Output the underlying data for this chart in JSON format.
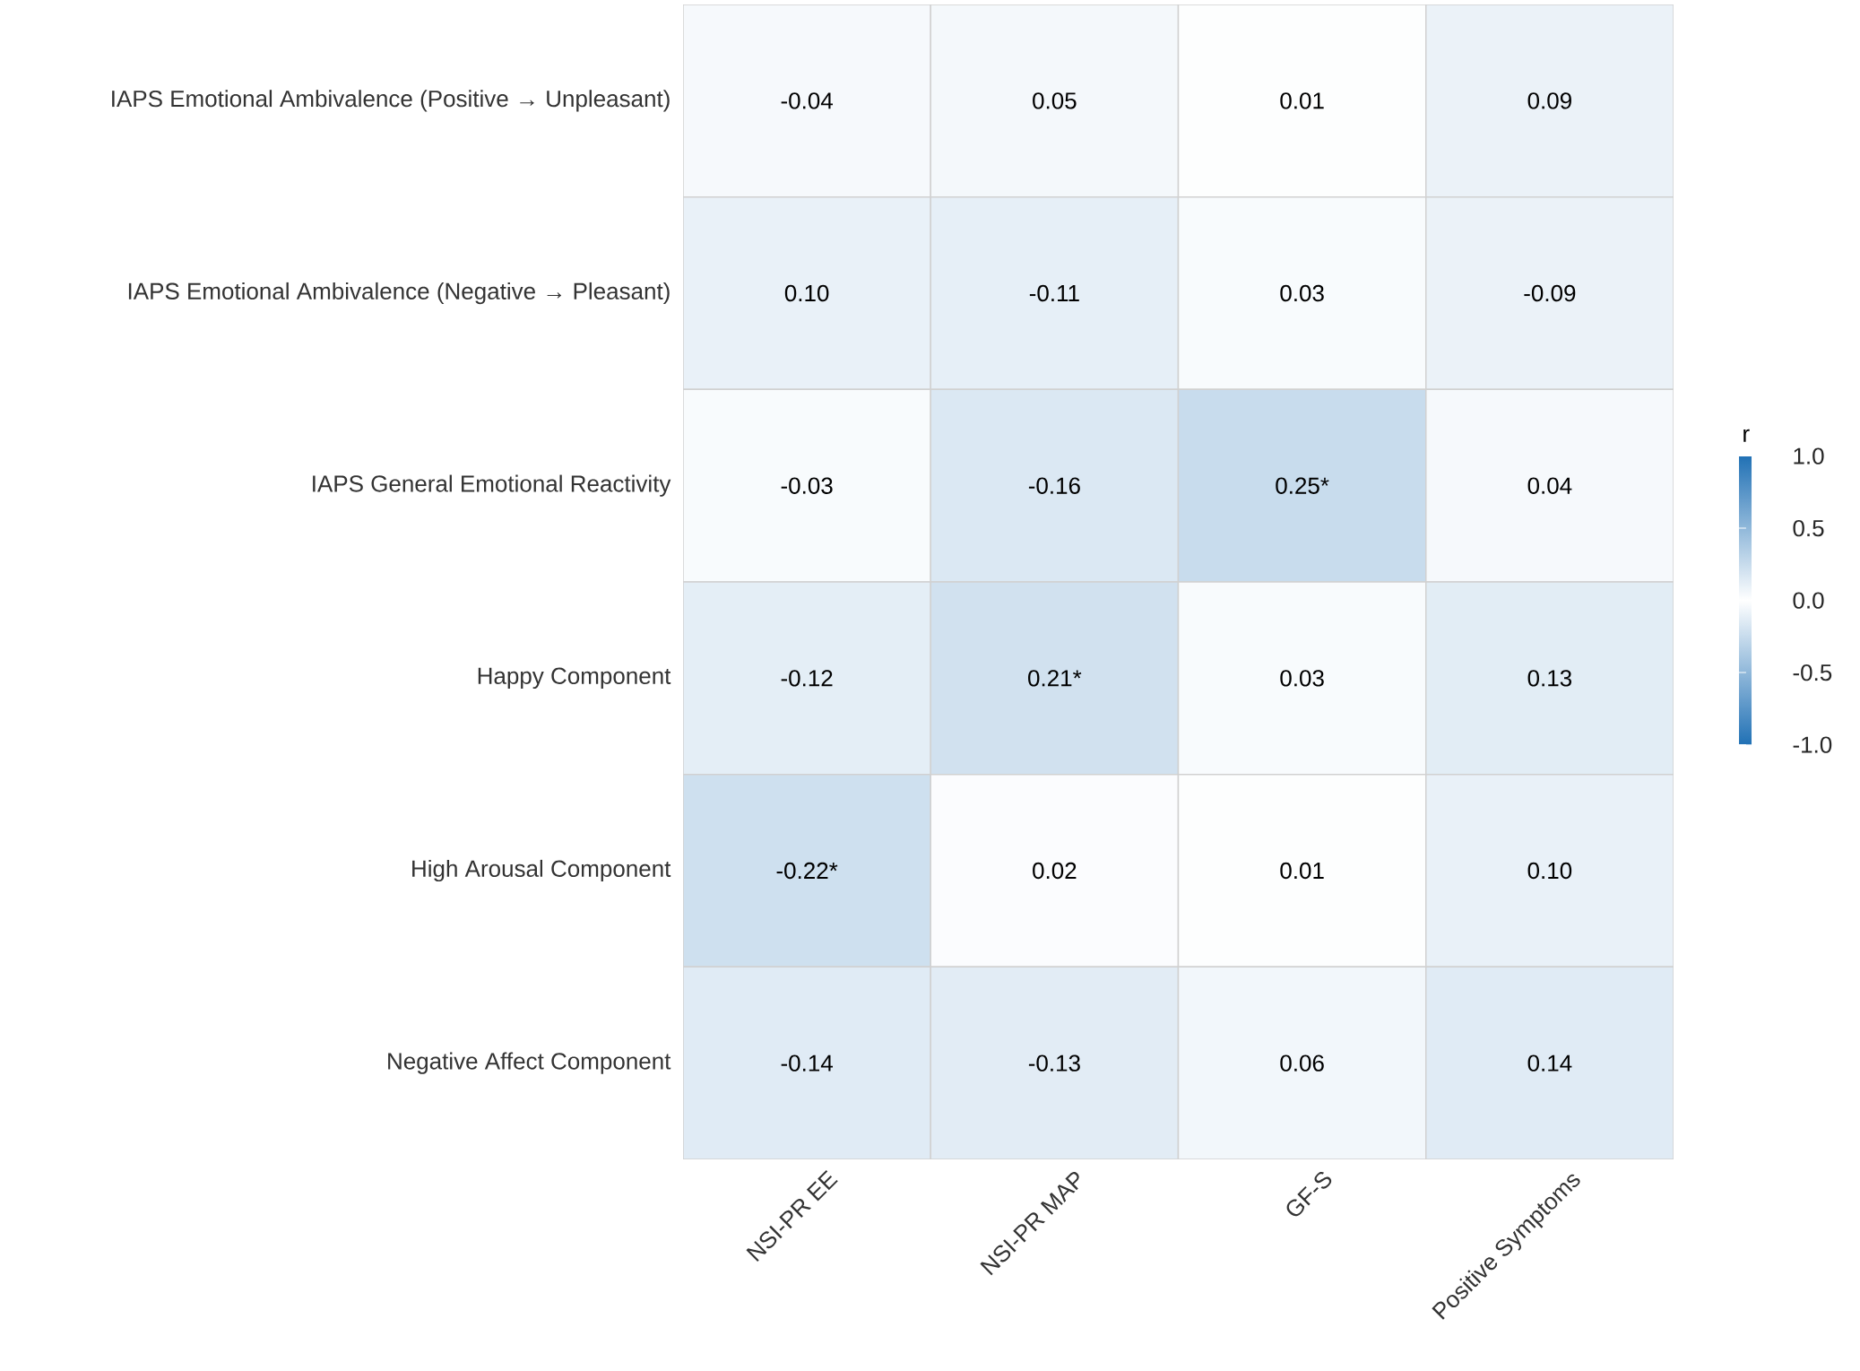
{
  "chart_data": {
    "type": "heatmap",
    "categories": [
      "NSI-PR EE",
      "NSI-PR MAP",
      "GF-S",
      "Positive Symptoms"
    ],
    "y_categories": [
      "IAPS Emotional Ambivalence (Positive → Unpleasant)",
      "IAPS Emotional Ambivalence (Negative → Pleasant)",
      "IAPS General Emotional Reactivity",
      "Happy Component",
      "High Arousal Component",
      "Negative Affect Component"
    ],
    "cells": [
      [
        -0.04,
        0.05,
        0.01,
        0.09
      ],
      [
        0.1,
        -0.11,
        0.03,
        -0.09
      ],
      [
        -0.03,
        -0.16,
        0.25,
        0.04
      ],
      [
        -0.12,
        0.21,
        0.03,
        0.13
      ],
      [
        -0.22,
        0.02,
        0.01,
        0.1
      ],
      [
        -0.14,
        -0.13,
        0.06,
        0.14
      ]
    ],
    "cell_labels": [
      [
        "-0.04",
        "0.05",
        "0.01",
        "0.09"
      ],
      [
        "0.10",
        "-0.11",
        "0.03",
        "-0.09"
      ],
      [
        "-0.03",
        "-0.16",
        "0.25*",
        "0.04"
      ],
      [
        "-0.12",
        "0.21*",
        "0.03",
        "0.13"
      ],
      [
        "-0.22*",
        "0.02",
        "0.01",
        "0.10"
      ],
      [
        "-0.14",
        "-0.13",
        "0.06",
        "0.14"
      ]
    ],
    "clabel": "r",
    "clim": [
      -1,
      1
    ],
    "cticks": [
      {
        "value": -1,
        "label": "-1.0"
      },
      {
        "value": -0.5,
        "label": "-0.5"
      },
      {
        "value": 0,
        "label": "0.0"
      },
      {
        "value": 0.5,
        "label": "0.5"
      },
      {
        "value": 1,
        "label": "1.0"
      }
    ]
  }
}
